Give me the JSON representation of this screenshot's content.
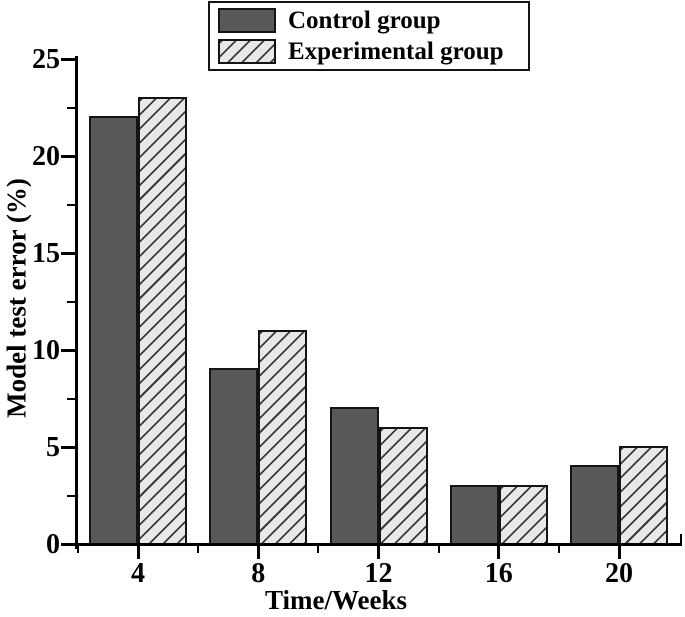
{
  "figure": {
    "background": "#ffffff"
  },
  "chart_data": {
    "type": "bar",
    "title": "",
    "categories": [
      "4",
      "8",
      "12",
      "16",
      "20"
    ],
    "series": [
      {
        "name": "Control group",
        "values": [
          22,
          9,
          7,
          3,
          4
        ],
        "fill": "#595959",
        "pattern": "solid"
      },
      {
        "name": "Experimental group",
        "values": [
          23,
          11,
          6,
          3,
          5
        ],
        "fill": "#e8e8e8",
        "pattern": "diagonal-hatch",
        "hatch_line_color": "#3a3a3a"
      }
    ],
    "xlabel": "Time/Weeks",
    "ylabel": "Model test error (%)",
    "ylim": [
      0,
      25
    ],
    "y_major_ticks": [
      "0",
      "5",
      "10",
      "15",
      "20",
      "25"
    ],
    "y_minor_ticks": [
      2.5,
      7.5,
      12.5,
      17.5,
      22.5
    ],
    "grid": false,
    "legend_position": "top-center",
    "bar_edge_color": "#141414",
    "axis_color": "#000000"
  }
}
